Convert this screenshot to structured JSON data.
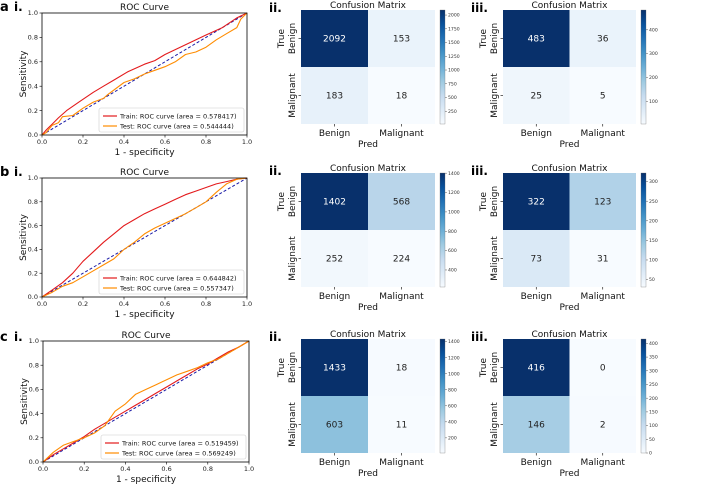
{
  "chart_data": [
    {
      "row": "a",
      "panel": "i.",
      "type": "line",
      "title": "ROC Curve",
      "xlabel": "1 - specificity",
      "ylabel": "Sensitivity",
      "xlim": [
        0,
        1
      ],
      "ylim": [
        0,
        1
      ],
      "ticks": [
        "0.0",
        "0.2",
        "0.4",
        "0.6",
        "0.8",
        "1.0"
      ],
      "series": [
        {
          "name": "Train: ROC curve (area = 0.578417)",
          "color": "#e31a1c",
          "x": [
            0,
            0.02,
            0.05,
            0.08,
            0.12,
            0.18,
            0.25,
            0.3,
            0.35,
            0.42,
            0.5,
            0.55,
            0.6,
            0.7,
            0.8,
            0.88,
            0.95,
            1.0
          ],
          "y": [
            0,
            0.04,
            0.09,
            0.14,
            0.2,
            0.27,
            0.35,
            0.4,
            0.45,
            0.52,
            0.58,
            0.61,
            0.66,
            0.74,
            0.82,
            0.88,
            0.96,
            1.0
          ]
        },
        {
          "name": "Test: ROC curve (area = 0.544444)",
          "color": "#ff8c00",
          "x": [
            0,
            0.02,
            0.05,
            0.08,
            0.1,
            0.15,
            0.2,
            0.25,
            0.3,
            0.32,
            0.4,
            0.45,
            0.5,
            0.55,
            0.6,
            0.65,
            0.7,
            0.75,
            0.8,
            0.85,
            0.9,
            0.95,
            0.97,
            1.0
          ],
          "y": [
            0,
            0.02,
            0.08,
            0.1,
            0.15,
            0.16,
            0.22,
            0.27,
            0.3,
            0.33,
            0.43,
            0.46,
            0.5,
            0.53,
            0.56,
            0.6,
            0.66,
            0.68,
            0.72,
            0.78,
            0.83,
            0.88,
            0.95,
            1.0
          ]
        }
      ]
    },
    {
      "row": "a",
      "panel": "ii.",
      "type": "heatmap",
      "title": "Confusion Matrix",
      "xlabel": "Pred",
      "ylabel": "True",
      "labels": [
        "Benign",
        "Malignant"
      ],
      "matrix": [
        [
          2092,
          153
        ],
        [
          183,
          18
        ]
      ],
      "cbar_ticks": [
        "2000",
        "1750",
        "1500",
        "1250",
        "1000",
        "750",
        "500",
        "250"
      ],
      "cbar_values": [
        2000,
        1750,
        1500,
        1250,
        1000,
        750,
        500,
        250
      ]
    },
    {
      "row": "a",
      "panel": "iii.",
      "type": "heatmap",
      "title": "Confusion Matrix",
      "xlabel": "Pred",
      "ylabel": "True",
      "labels": [
        "Benign",
        "Malignant"
      ],
      "matrix": [
        [
          483,
          36
        ],
        [
          25,
          5
        ]
      ],
      "cbar_ticks": [
        "400",
        "300",
        "200",
        "100"
      ],
      "cbar_values": [
        400,
        300,
        200,
        100
      ]
    },
    {
      "row": "b",
      "panel": "i.",
      "type": "line",
      "title": "ROC Curve",
      "xlabel": "1 - specificity",
      "ylabel": "Sensitivity",
      "xlim": [
        0,
        1
      ],
      "ylim": [
        0,
        1
      ],
      "ticks": [
        "0.0",
        "0.2",
        "0.4",
        "0.6",
        "0.8",
        "1.0"
      ],
      "series": [
        {
          "name": "Train: ROC curve (area = 0.644842)",
          "color": "#e31a1c",
          "x": [
            0,
            0.05,
            0.1,
            0.15,
            0.2,
            0.25,
            0.3,
            0.35,
            0.4,
            0.45,
            0.5,
            0.55,
            0.6,
            0.65,
            0.7,
            0.75,
            0.8,
            0.85,
            0.9,
            0.95,
            1.0
          ],
          "y": [
            0,
            0.06,
            0.12,
            0.2,
            0.3,
            0.38,
            0.46,
            0.53,
            0.6,
            0.65,
            0.7,
            0.74,
            0.78,
            0.82,
            0.86,
            0.89,
            0.92,
            0.95,
            0.97,
            0.99,
            1.0
          ]
        },
        {
          "name": "Test: ROC curve (area = 0.557347)",
          "color": "#ff8c00",
          "x": [
            0,
            0.05,
            0.1,
            0.15,
            0.2,
            0.25,
            0.3,
            0.35,
            0.4,
            0.45,
            0.5,
            0.55,
            0.6,
            0.65,
            0.7,
            0.75,
            0.8,
            0.85,
            0.9,
            0.95,
            1.0
          ],
          "y": [
            0,
            0.04,
            0.09,
            0.12,
            0.17,
            0.22,
            0.27,
            0.32,
            0.4,
            0.46,
            0.53,
            0.58,
            0.62,
            0.66,
            0.7,
            0.75,
            0.8,
            0.88,
            0.95,
            0.99,
            1.0
          ]
        }
      ]
    },
    {
      "row": "b",
      "panel": "ii.",
      "type": "heatmap",
      "title": "Confusion Matrix",
      "xlabel": "Pred",
      "ylabel": "True",
      "labels": [
        "Benign",
        "Malignant"
      ],
      "matrix": [
        [
          1402,
          568
        ],
        [
          252,
          224
        ]
      ],
      "cbar_ticks": [
        "1400",
        "1200",
        "1000",
        "800",
        "600",
        "400"
      ],
      "cbar_values": [
        1400,
        1200,
        1000,
        800,
        600,
        400
      ]
    },
    {
      "row": "b",
      "panel": "iii.",
      "type": "heatmap",
      "title": "Confusion Matrix",
      "xlabel": "Pred",
      "ylabel": "True",
      "labels": [
        "Benign",
        "Malignant"
      ],
      "matrix": [
        [
          322,
          123
        ],
        [
          73,
          31
        ]
      ],
      "cbar_ticks": [
        "300",
        "250",
        "200",
        "150",
        "100",
        "50"
      ],
      "cbar_values": [
        300,
        250,
        200,
        150,
        100,
        50
      ]
    },
    {
      "row": "c",
      "panel": "i.",
      "type": "line",
      "title": "ROC Curve",
      "xlabel": "1 - specificity",
      "ylabel": "Sensitivity",
      "xlim": [
        0,
        1
      ],
      "ylim": [
        0,
        1
      ],
      "ticks": [
        "0.0",
        "0.2",
        "0.4",
        "0.6",
        "0.8",
        "1.0"
      ],
      "series": [
        {
          "name": "Train: ROC curve (area = 0.519459)",
          "color": "#e31a1c",
          "x": [
            0,
            0.05,
            0.1,
            0.15,
            0.2,
            0.25,
            0.3,
            0.35,
            0.4,
            0.45,
            0.5,
            0.55,
            0.6,
            0.65,
            0.7,
            0.75,
            0.8,
            0.85,
            0.9,
            0.95,
            1.0
          ],
          "y": [
            0,
            0.06,
            0.11,
            0.16,
            0.21,
            0.27,
            0.32,
            0.37,
            0.42,
            0.47,
            0.52,
            0.57,
            0.62,
            0.67,
            0.72,
            0.77,
            0.81,
            0.86,
            0.91,
            0.95,
            1.0
          ]
        },
        {
          "name": "Test: ROC curve (area = 0.569249)",
          "color": "#ff8c00",
          "x": [
            0,
            0.05,
            0.1,
            0.15,
            0.2,
            0.25,
            0.3,
            0.35,
            0.4,
            0.45,
            0.5,
            0.55,
            0.6,
            0.65,
            0.7,
            0.75,
            0.8,
            0.85,
            0.9,
            0.95,
            1.0
          ],
          "y": [
            0,
            0.08,
            0.14,
            0.17,
            0.2,
            0.24,
            0.3,
            0.42,
            0.48,
            0.56,
            0.6,
            0.64,
            0.68,
            0.72,
            0.75,
            0.78,
            0.82,
            0.85,
            0.9,
            0.95,
            1.0
          ]
        }
      ]
    },
    {
      "row": "c",
      "panel": "ii.",
      "type": "heatmap",
      "title": "Confusion Matrix",
      "xlabel": "Pred",
      "ylabel": "True",
      "labels": [
        "Benign",
        "Malignant"
      ],
      "matrix": [
        [
          1433,
          18
        ],
        [
          603,
          11
        ]
      ],
      "cbar_ticks": [
        "1400",
        "1200",
        "1000",
        "800",
        "600",
        "400",
        "200"
      ],
      "cbar_values": [
        1400,
        1200,
        1000,
        800,
        600,
        400,
        200
      ]
    },
    {
      "row": "c",
      "panel": "iii.",
      "type": "heatmap",
      "title": "Confusion Matrix",
      "xlabel": "Pred",
      "ylabel": "True",
      "labels": [
        "Benign",
        "Malignant"
      ],
      "matrix": [
        [
          416,
          0
        ],
        [
          146,
          2
        ]
      ],
      "cbar_ticks": [
        "400",
        "350",
        "300",
        "250",
        "200",
        "150",
        "100",
        "50",
        "0"
      ],
      "cbar_values": [
        400,
        350,
        300,
        250,
        200,
        150,
        100,
        50,
        0
      ]
    }
  ],
  "colors": {
    "chance_line": "#1a1aa6",
    "cmap_low": "#f7fbff",
    "cmap_high": "#08306b"
  }
}
